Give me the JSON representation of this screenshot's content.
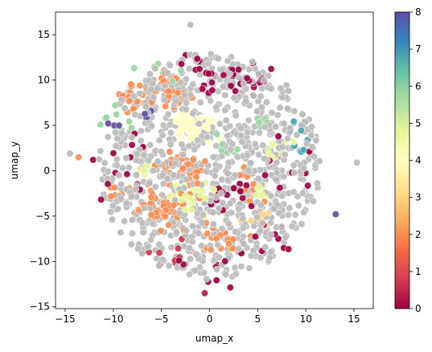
{
  "chart_data": {
    "type": "scatter",
    "title": "",
    "xlabel": "umap_x",
    "ylabel": "umap_y",
    "xlim": [
      -16,
      17
    ],
    "ylim": [
      -15.2,
      17.5
    ],
    "xticks": [
      -15,
      -10,
      -5,
      0,
      5,
      10,
      15
    ],
    "yticks": [
      -15,
      -10,
      -5,
      0,
      5,
      10,
      15
    ],
    "colorbar": {
      "colormap": "Spectral",
      "range": [
        0,
        8
      ],
      "ticks": [
        0,
        1,
        2,
        3,
        4,
        5,
        6,
        7,
        8
      ],
      "stops": [
        "#9e0142",
        "#d53e4f",
        "#f46d43",
        "#fdae61",
        "#fee08b",
        "#ffffbf",
        "#e6f598",
        "#abdda4",
        "#66c2a5",
        "#3288bd",
        "#5e4fa2"
      ]
    },
    "unlabeled_color": "#bdbdbd",
    "grid": false,
    "legend": "none",
    "clusters": [
      {
        "label": 4,
        "center": [
          -2.0,
          5.0
        ],
        "spread": [
          1.6,
          1.1
        ],
        "count": 70
      },
      {
        "label": 2,
        "center": [
          -4.5,
          9.0
        ],
        "spread": [
          1.8,
          1.4
        ],
        "count": 45
      },
      {
        "label": 2,
        "center": [
          -8.0,
          8.0
        ],
        "spread": [
          1.5,
          1.5
        ],
        "count": 20
      },
      {
        "label": 2,
        "center": [
          -5.0,
          -4.0
        ],
        "spread": [
          1.8,
          1.5
        ],
        "count": 60
      },
      {
        "label": 2,
        "center": [
          -2.0,
          0.0
        ],
        "spread": [
          1.0,
          1.0
        ],
        "count": 25
      },
      {
        "label": 2,
        "center": [
          -4.0,
          0.5
        ],
        "spread": [
          1.0,
          1.0
        ],
        "count": 15
      },
      {
        "label": 2,
        "center": [
          1.0,
          -7.5
        ],
        "spread": [
          1.5,
          1.2
        ],
        "count": 20
      },
      {
        "label": 2,
        "center": [
          4.0,
          -2.0
        ],
        "spread": [
          1.5,
          1.5
        ],
        "count": 15
      },
      {
        "label": 2,
        "center": [
          -9.5,
          -3.0
        ],
        "spread": [
          1.0,
          1.0
        ],
        "count": 10
      },
      {
        "label": 4.8,
        "center": [
          -2.0,
          -3.0
        ],
        "spread": [
          1.5,
          1.2
        ],
        "count": 40
      },
      {
        "label": 4.8,
        "center": [
          5.5,
          -2.5
        ],
        "spread": [
          1.0,
          0.6
        ],
        "count": 15
      },
      {
        "label": 4.8,
        "center": [
          -6.5,
          0.3
        ],
        "spread": [
          1.0,
          0.5
        ],
        "count": 12
      },
      {
        "label": 4.8,
        "center": [
          7.0,
          2.0
        ],
        "spread": [
          1.0,
          1.0
        ],
        "count": 10
      },
      {
        "label": 3,
        "center": [
          5.0,
          -5.0
        ],
        "spread": [
          1.0,
          1.0
        ],
        "count": 10
      },
      {
        "label": 0,
        "center": [
          2.0,
          10.0
        ],
        "spread": [
          1.5,
          1.5
        ],
        "count": 20
      },
      {
        "label": 0,
        "center": [
          5.5,
          10.5
        ],
        "spread": [
          1.2,
          1.2
        ],
        "count": 10
      },
      {
        "label": 0,
        "center": [
          -1.0,
          11.5
        ],
        "spread": [
          1.5,
          1.0
        ],
        "count": 10
      },
      {
        "label": 0,
        "center": [
          2.5,
          -2.5
        ],
        "spread": [
          1.5,
          1.5
        ],
        "count": 15
      },
      {
        "label": 0,
        "center": [
          -8.5,
          0.0
        ],
        "spread": [
          2.5,
          3.5
        ],
        "count": 12
      },
      {
        "label": 0,
        "center": [
          9.5,
          0.0
        ],
        "spread": [
          2.0,
          3.5
        ],
        "count": 12
      },
      {
        "label": 0,
        "center": [
          0.0,
          -10.5
        ],
        "spread": [
          3.0,
          1.5
        ],
        "count": 10
      },
      {
        "label": 0,
        "center": [
          6.5,
          -7.5
        ],
        "spread": [
          1.5,
          1.5
        ],
        "count": 8
      },
      {
        "label": 0.7,
        "center": [
          -4.0,
          -9.0
        ],
        "spread": [
          2.0,
          1.0
        ],
        "count": 8
      },
      {
        "label": 5.8,
        "center": [
          2.0,
          3.0
        ],
        "spread": [
          1.0,
          1.0
        ],
        "count": 8
      },
      {
        "label": 5.8,
        "center": [
          5.5,
          5.5
        ],
        "spread": [
          1.0,
          1.0
        ],
        "count": 8
      },
      {
        "label": 5.8,
        "center": [
          -9.0,
          6.0
        ],
        "spread": [
          2.0,
          1.5
        ],
        "count": 8
      },
      {
        "label": 5.8,
        "center": [
          -6.0,
          11.5
        ],
        "spread": [
          2.0,
          1.0
        ],
        "count": 6
      },
      {
        "label": 6.8,
        "center": [
          9.2,
          5.0
        ],
        "spread": [
          0.7,
          0.8
        ],
        "count": 6
      },
      {
        "label": 6.8,
        "center": [
          9.5,
          2.5
        ],
        "spread": [
          0.7,
          0.5
        ],
        "count": 4
      },
      {
        "label": 8,
        "center": [
          -6.2,
          6.2
        ],
        "spread": [
          0.5,
          0.5
        ],
        "count": 5
      },
      {
        "label": 8,
        "center": [
          -10.0,
          5.5
        ],
        "spread": [
          0.8,
          0.7
        ],
        "count": 3
      }
    ],
    "background": {
      "label": null,
      "center": [
        0,
        0.5
      ],
      "radius": [
        11.5,
        12.5
      ],
      "count": 900
    },
    "extra_points": [
      {
        "x": 13.1,
        "y": -4.8,
        "label": 8
      },
      {
        "x": -2.0,
        "y": 16.1,
        "label": null
      },
      {
        "x": 15.3,
        "y": 0.9,
        "label": null
      },
      {
        "x": -14.5,
        "y": 1.9,
        "label": null
      },
      {
        "x": -0.5,
        "y": -13.5,
        "label": 0.3
      },
      {
        "x": -13.6,
        "y": 1.5,
        "label": 2
      },
      {
        "x": -12.1,
        "y": 1.2,
        "label": 0
      }
    ]
  }
}
